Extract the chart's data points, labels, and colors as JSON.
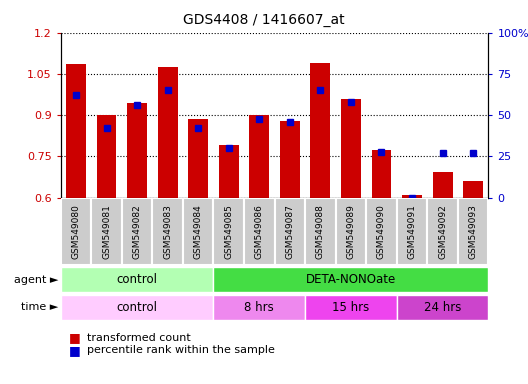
{
  "title": "GDS4408 / 1416607_at",
  "samples": [
    "GSM549080",
    "GSM549081",
    "GSM549082",
    "GSM549083",
    "GSM549084",
    "GSM549085",
    "GSM549086",
    "GSM549087",
    "GSM549088",
    "GSM549089",
    "GSM549090",
    "GSM549091",
    "GSM549092",
    "GSM549093"
  ],
  "bar_values": [
    1.085,
    0.9,
    0.945,
    1.075,
    0.885,
    0.79,
    0.9,
    0.88,
    1.09,
    0.96,
    0.775,
    0.61,
    0.695,
    0.66
  ],
  "percentile_values": [
    62,
    42,
    56,
    65,
    42,
    30,
    48,
    46,
    65,
    58,
    28,
    0,
    27,
    27
  ],
  "bar_color": "#cc0000",
  "dot_color": "#0000cc",
  "ylim_left": [
    0.6,
    1.2
  ],
  "ylim_right": [
    0,
    100
  ],
  "yticks_left": [
    0.6,
    0.75,
    0.9,
    1.05,
    1.2
  ],
  "ytick_labels_left": [
    "0.6",
    "0.75",
    "0.9",
    "1.05",
    "1.2"
  ],
  "yticks_right": [
    0,
    25,
    50,
    75,
    100
  ],
  "ytick_labels_right": [
    "0",
    "25",
    "50",
    "75",
    "100%"
  ],
  "agent_groups": [
    {
      "label": "control",
      "start": 0,
      "end": 5,
      "color": "#b3ffb3"
    },
    {
      "label": "DETA-NONOate",
      "start": 5,
      "end": 14,
      "color": "#44dd44"
    }
  ],
  "time_groups": [
    {
      "label": "control",
      "start": 0,
      "end": 5,
      "color": "#ffccff"
    },
    {
      "label": "8 hrs",
      "start": 5,
      "end": 8,
      "color": "#ee88ee"
    },
    {
      "label": "15 hrs",
      "start": 8,
      "end": 11,
      "color": "#ee44ee"
    },
    {
      "label": "24 hrs",
      "start": 11,
      "end": 14,
      "color": "#cc44cc"
    }
  ],
  "legend_bar_label": "transformed count",
  "legend_dot_label": "percentile rank within the sample",
  "bg_color": "#ffffff",
  "xtick_bg_color": "#cccccc",
  "xtick_border_color": "#ffffff",
  "bar_bottom": 0.6
}
